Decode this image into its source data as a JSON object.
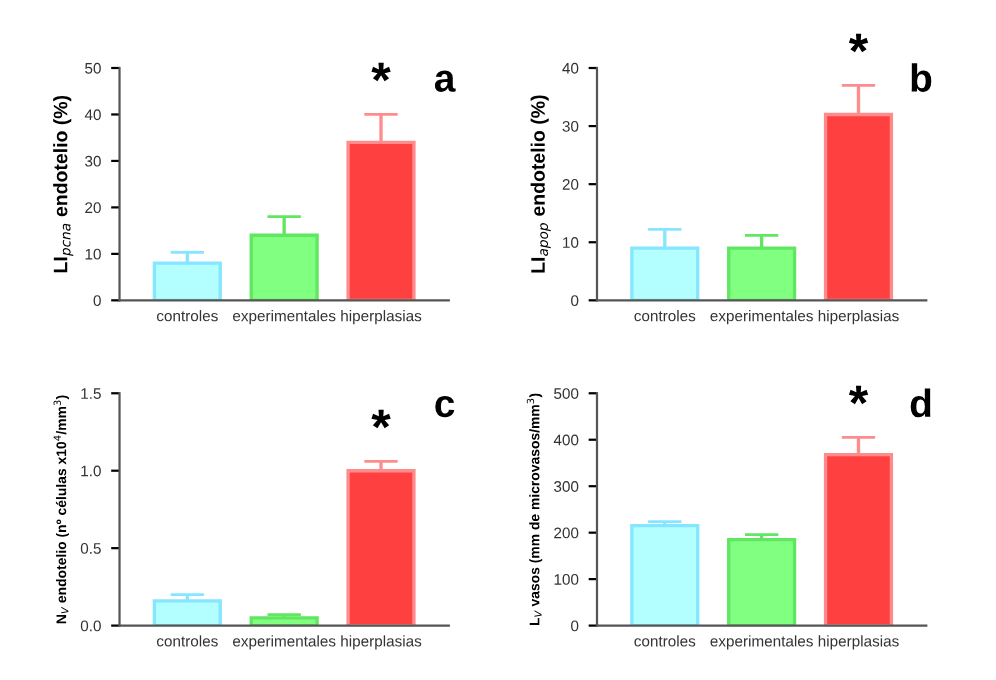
{
  "chart_data": [
    {
      "type": "bar",
      "ylabel": "LI$_{pcna}$ endotelio (%)",
      "categories": [
        "controles",
        "experimentales",
        "hiperplasias"
      ],
      "values": [
        8,
        14,
        34
      ],
      "errors": [
        2.3,
        4,
        6
      ],
      "colors": [
        "#b3ffff",
        "#80ff80",
        "#ff4040"
      ],
      "ylim": [
        0,
        50
      ],
      "yticks": [
        0,
        10,
        20,
        30,
        40,
        50
      ],
      "annotations": [
        "*",
        "a"
      ]
    },
    {
      "type": "bar",
      "ylabel": "LI$_{apop}$ endotelio (%)",
      "categories": [
        "controles",
        "experimentales",
        "hiperplasias"
      ],
      "values": [
        9,
        9,
        32
      ],
      "errors": [
        3.2,
        2.2,
        5
      ],
      "colors": [
        "#b3ffff",
        "#80ff80",
        "#ff4040"
      ],
      "ylim": [
        0,
        40
      ],
      "yticks": [
        0,
        10,
        20,
        30,
        40
      ],
      "annotations": [
        "*",
        "b"
      ]
    },
    {
      "type": "bar",
      "ylabel": "N$_{V}$ endotelio (nº células x10$^{4}$/mm$^{3}$)",
      "categories": [
        "controles",
        "experimentales",
        "hiperplasias"
      ],
      "values": [
        0.16,
        0.05,
        1.0
      ],
      "errors": [
        0.04,
        0.02,
        0.06
      ],
      "colors": [
        "#b3ffff",
        "#80ff80",
        "#ff4040"
      ],
      "ylim": [
        0,
        1.5
      ],
      "yticks": [
        {
          "value": 0,
          "label": "0.0"
        },
        0.5,
        {
          "value": 1,
          "label": "1.0"
        },
        1.5
      ],
      "annotations": [
        "*",
        "c"
      ]
    },
    {
      "type": "bar",
      "ylabel": "L$_{V}$ vasos (mm de microvasos/mm$^{3}$)",
      "categories": [
        "controles",
        "experimentales",
        "hiperplasias"
      ],
      "values": [
        215,
        185,
        368
      ],
      "errors": [
        9,
        11,
        37
      ],
      "colors": [
        "#b3ffff",
        "#80ff80",
        "#ff4040"
      ],
      "ylim": [
        0,
        500
      ],
      "yticks": [
        0,
        100,
        200,
        300,
        400,
        500
      ],
      "annotations": [
        "*",
        "d"
      ]
    }
  ]
}
